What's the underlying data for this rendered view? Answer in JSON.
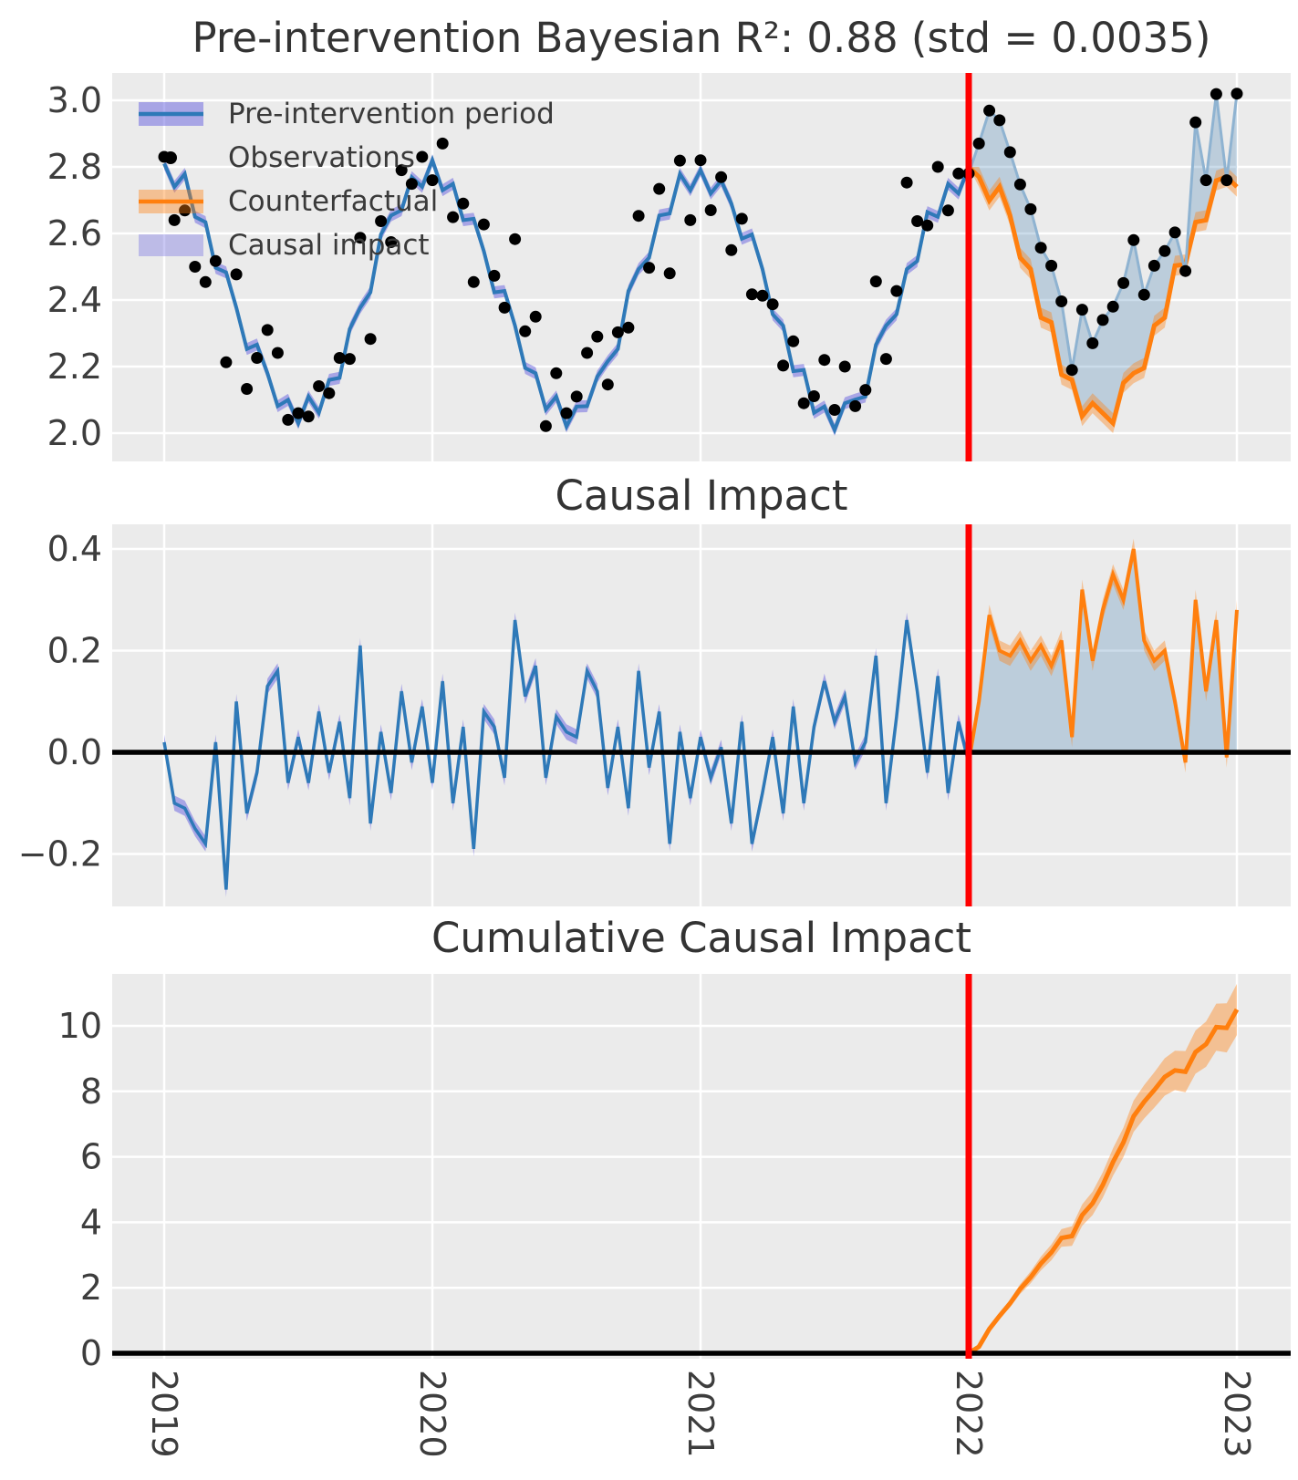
{
  "figure": {
    "colors": {
      "axes_bg": "#ebebeb",
      "grid": "#ffffff",
      "fit_line": "#2e79b8",
      "fit_band": "#6660e0",
      "observations": "#000000",
      "counterfactual": "#ff7f0e",
      "impact_fill": "#4682b4",
      "post_observed_line": "#8fb3d1",
      "intervention_line": "#ff0000",
      "zero_line": "#000000",
      "text": "#3a3a3a"
    }
  },
  "legend": {
    "items": [
      {
        "label": "Pre-intervention period",
        "marker": "band-with-line",
        "color_key": "fit_band"
      },
      {
        "label": "Observations",
        "marker": "dot",
        "color_key": "observations"
      },
      {
        "label": "Counterfactual",
        "marker": "band-with-line",
        "color_key": "counterfactual"
      },
      {
        "label": "Causal impact",
        "marker": "patch",
        "color_key": "fit_band"
      }
    ]
  },
  "chart_data": {
    "type": "line",
    "title": "Pre-intervention Bayesian R²: 0.88 (std = 0.0035)",
    "stats": {
      "r_squared": 0.88,
      "r_squared_std": 0.0035
    },
    "xlim": [
      2018.806,
      2023.2
    ],
    "intervention_x": 2022.0,
    "intervention_index": 78,
    "grid": true,
    "legend_position": "upper left",
    "xticks": [
      {
        "value": 2019,
        "label": "2019"
      },
      {
        "value": 2020,
        "label": "2020"
      },
      {
        "value": 2021,
        "label": "2021"
      },
      {
        "value": 2022,
        "label": "2022"
      },
      {
        "value": 2023,
        "label": "2023"
      }
    ],
    "panels": [
      {
        "name": "observed-vs-counterfactual",
        "title": "Pre-intervention Bayesian R²: 0.88 (std = 0.0035)",
        "ylim": [
          1.918,
          3.082
        ],
        "yticks": [
          {
            "value": 3.0,
            "label": "3.0"
          },
          {
            "value": 2.8,
            "label": "2.8"
          },
          {
            "value": 2.6,
            "label": "2.6"
          },
          {
            "value": 2.4,
            "label": "2.4"
          },
          {
            "value": 2.2,
            "label": "2.2"
          },
          {
            "value": 2.0,
            "label": "2.0"
          }
        ]
      },
      {
        "name": "causal-impact",
        "title": "Causal Impact",
        "ylim": [
          -0.303,
          0.448
        ],
        "yticks": [
          {
            "value": 0.4,
            "label": "0.4"
          },
          {
            "value": 0.2,
            "label": "0.2"
          },
          {
            "value": 0.0,
            "label": "0.0"
          },
          {
            "value": -0.2,
            "label": "−0.2"
          }
        ]
      },
      {
        "name": "cumulative-causal-impact",
        "title": "Cumulative Causal Impact",
        "ylim": [
          -0.17,
          11.59
        ],
        "yticks": [
          {
            "value": 10,
            "label": "10"
          },
          {
            "value": 8,
            "label": "8"
          },
          {
            "value": 6,
            "label": "6"
          },
          {
            "value": 4,
            "label": "4"
          },
          {
            "value": 2,
            "label": "2"
          },
          {
            "value": 0,
            "label": "0"
          }
        ]
      }
    ],
    "x": [
      2019.0,
      2019.038,
      2019.077,
      2019.115,
      2019.154,
      2019.192,
      2019.231,
      2019.269,
      2019.308,
      2019.346,
      2019.385,
      2019.423,
      2019.462,
      2019.5,
      2019.538,
      2019.577,
      2019.615,
      2019.654,
      2019.692,
      2019.731,
      2019.769,
      2019.808,
      2019.846,
      2019.885,
      2019.923,
      2019.962,
      2020.0,
      2020.038,
      2020.077,
      2020.115,
      2020.154,
      2020.192,
      2020.231,
      2020.269,
      2020.308,
      2020.346,
      2020.385,
      2020.423,
      2020.462,
      2020.5,
      2020.538,
      2020.577,
      2020.615,
      2020.654,
      2020.692,
      2020.731,
      2020.769,
      2020.808,
      2020.846,
      2020.885,
      2020.923,
      2020.962,
      2021.0,
      2021.038,
      2021.077,
      2021.115,
      2021.154,
      2021.192,
      2021.231,
      2021.269,
      2021.308,
      2021.346,
      2021.385,
      2021.423,
      2021.462,
      2021.5,
      2021.538,
      2021.577,
      2021.615,
      2021.654,
      2021.692,
      2021.731,
      2021.769,
      2021.808,
      2021.846,
      2021.885,
      2021.923,
      2021.962,
      2022.0,
      2022.038,
      2022.077,
      2022.115,
      2022.154,
      2022.192,
      2022.231,
      2022.269,
      2022.308,
      2022.346,
      2022.385,
      2022.423,
      2022.462,
      2022.5,
      2022.538,
      2022.577,
      2022.615,
      2022.654,
      2022.692,
      2022.731,
      2022.769,
      2022.808,
      2022.846,
      2022.885,
      2022.923,
      2022.962,
      2023.0
    ],
    "series": [
      {
        "name": "observations",
        "panel": 0,
        "style": "scatter",
        "start_index": 0,
        "values": [
          2.83,
          2.64,
          2.669,
          2.5,
          2.454,
          2.517,
          2.213,
          2.477,
          2.133,
          2.226,
          2.31,
          2.241,
          2.04,
          2.06,
          2.05,
          2.141,
          2.12,
          2.226,
          2.223,
          2.587,
          2.283,
          2.637,
          2.574,
          2.79,
          2.749,
          2.83,
          2.76,
          2.87,
          2.649,
          2.69,
          2.454,
          2.627,
          2.473,
          2.377,
          2.583,
          2.306,
          2.35,
          2.021,
          2.18,
          2.06,
          2.11,
          2.241,
          2.29,
          2.146,
          2.303,
          2.317,
          2.653,
          2.497,
          2.734,
          2.48,
          2.819,
          2.64,
          2.82,
          2.67,
          2.769,
          2.55,
          2.644,
          2.417,
          2.413,
          2.387,
          2.203,
          2.276,
          2.09,
          2.111,
          2.22,
          2.07,
          2.2,
          2.081,
          2.13,
          2.456,
          2.223,
          2.427,
          2.753,
          2.637,
          2.624,
          2.8,
          2.669,
          2.78,
          2.78,
          2.87,
          2.969,
          2.94,
          2.844,
          2.747,
          2.673,
          2.557,
          2.503,
          2.396,
          2.19,
          2.371,
          2.27,
          2.34,
          2.38,
          2.451,
          2.58,
          2.416,
          2.503,
          2.547,
          2.603,
          2.487,
          2.934,
          2.76,
          3.019,
          2.76,
          3.02
        ]
      },
      {
        "name": "pre_intervention_fit_mean",
        "panel": 0,
        "style": "line-with-band",
        "start_index": 0,
        "band_halfwidth": 0.018,
        "values": [
          2.81,
          2.74,
          2.779,
          2.65,
          2.634,
          2.497,
          2.483,
          2.377,
          2.253,
          2.266,
          2.18,
          2.081,
          2.1,
          2.03,
          2.11,
          2.061,
          2.16,
          2.166,
          2.313,
          2.377,
          2.423,
          2.597,
          2.654,
          2.67,
          2.769,
          2.74,
          2.82,
          2.73,
          2.749,
          2.64,
          2.644,
          2.547,
          2.423,
          2.427,
          2.323,
          2.196,
          2.18,
          2.071,
          2.11,
          2.02,
          2.08,
          2.081,
          2.17,
          2.216,
          2.253,
          2.427,
          2.493,
          2.527,
          2.654,
          2.66,
          2.779,
          2.73,
          2.79,
          2.72,
          2.759,
          2.69,
          2.584,
          2.597,
          2.493,
          2.357,
          2.323,
          2.186,
          2.19,
          2.061,
          2.08,
          2.01,
          2.09,
          2.101,
          2.11,
          2.266,
          2.323,
          2.357,
          2.493,
          2.517,
          2.664,
          2.65,
          2.749,
          2.72,
          2.8
        ]
      },
      {
        "name": "counterfactual_mean",
        "panel": 0,
        "style": "line-with-band",
        "start_index": 79,
        "band_halfwidth": 0.03,
        "values": [
          2.77,
          2.699,
          2.74,
          2.654,
          2.527,
          2.493,
          2.347,
          2.333,
          2.176,
          2.16,
          2.051,
          2.09,
          2.06,
          2.03,
          2.151,
          2.18,
          2.196,
          2.323,
          2.347,
          2.503,
          2.507,
          2.634,
          2.64,
          2.759,
          2.77,
          2.74
        ]
      },
      {
        "name": "impact_pre_mean",
        "panel": 1,
        "style": "line-with-band",
        "start_index": 0,
        "band_halfwidth": 0.015,
        "values": [
          0.02,
          -0.1,
          -0.11,
          -0.15,
          -0.18,
          0.02,
          -0.27,
          0.1,
          -0.12,
          -0.04,
          0.13,
          0.16,
          -0.06,
          0.03,
          -0.06,
          0.08,
          -0.04,
          0.06,
          -0.09,
          0.21,
          -0.14,
          0.04,
          -0.08,
          0.12,
          -0.02,
          0.09,
          -0.06,
          0.14,
          -0.1,
          0.05,
          -0.19,
          0.08,
          0.05,
          -0.05,
          0.26,
          0.11,
          0.17,
          -0.05,
          0.07,
          0.04,
          0.03,
          0.16,
          0.12,
          -0.07,
          0.05,
          -0.11,
          0.16,
          -0.03,
          0.08,
          -0.18,
          0.04,
          -0.09,
          0.03,
          -0.05,
          0.01,
          -0.14,
          0.06,
          -0.18,
          -0.08,
          0.03,
          -0.12,
          0.09,
          -0.1,
          0.05,
          0.14,
          0.06,
          0.11,
          -0.02,
          0.02,
          0.19,
          -0.1,
          0.07,
          0.26,
          0.12,
          -0.04,
          0.15,
          -0.08,
          0.06,
          -0.02
        ]
      },
      {
        "name": "impact_post_mean",
        "panel": 1,
        "style": "line-with-band-filled-to-zero",
        "start_index": 79,
        "band_halfwidth": 0.02,
        "values": [
          0.1,
          0.27,
          0.2,
          0.19,
          0.22,
          0.18,
          0.21,
          0.17,
          0.22,
          0.03,
          0.32,
          0.18,
          0.28,
          0.35,
          0.3,
          0.4,
          0.22,
          0.18,
          0.2,
          0.1,
          -0.02,
          0.3,
          0.12,
          0.26,
          -0.01,
          0.28
        ]
      },
      {
        "name": "cumulative_impact_mean",
        "panel": 2,
        "style": "line-with-band",
        "start_index": 79,
        "values": [
          0.2,
          0.74,
          1.14,
          1.52,
          1.96,
          2.32,
          2.74,
          3.08,
          3.52,
          3.58,
          4.22,
          4.58,
          5.14,
          5.84,
          6.44,
          7.24,
          7.68,
          8.04,
          8.44,
          8.64,
          8.6,
          9.2,
          9.44,
          9.96,
          9.94,
          10.5
        ],
        "band_halfwidths": [
          0.03,
          0.06,
          0.09,
          0.12,
          0.15,
          0.18,
          0.21,
          0.24,
          0.27,
          0.3,
          0.33,
          0.36,
          0.39,
          0.42,
          0.45,
          0.48,
          0.51,
          0.54,
          0.57,
          0.6,
          0.63,
          0.66,
          0.69,
          0.72,
          0.75,
          0.78
        ]
      }
    ]
  }
}
